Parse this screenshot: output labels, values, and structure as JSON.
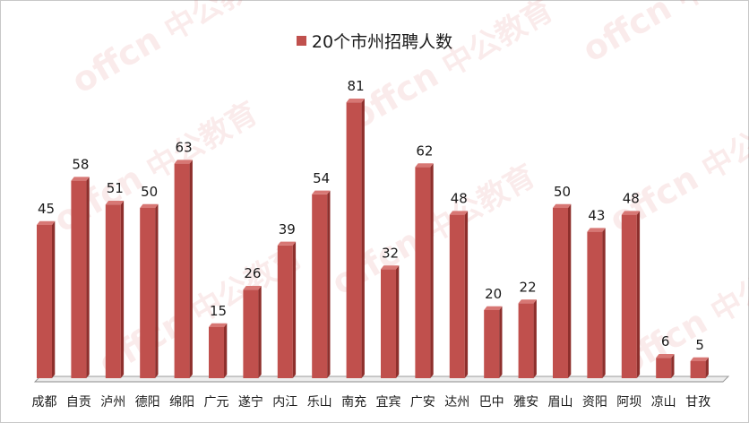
{
  "chart_data": {
    "type": "bar",
    "title": "",
    "xlabel": "",
    "ylabel": "",
    "legend": {
      "position": "top"
    },
    "grid": false,
    "ylim": [
      0,
      90
    ],
    "categories": [
      "成都",
      "自贡",
      "泸州",
      "德阳",
      "绵阳",
      "广元",
      "遂宁",
      "内江",
      "乐山",
      "南充",
      "宜宾",
      "广安",
      "达州",
      "巴中",
      "雅安",
      "眉山",
      "资阳",
      "阿坝",
      "凉山",
      "甘孜"
    ],
    "series": [
      {
        "name": "20个市州招聘人数",
        "color": "#c0504d",
        "values": [
          45,
          58,
          51,
          50,
          63,
          15,
          26,
          39,
          54,
          81,
          32,
          62,
          48,
          20,
          22,
          50,
          43,
          48,
          6,
          5
        ]
      }
    ]
  },
  "watermark": {
    "brand_latin": "offcn",
    "brand_cn": "中公教育"
  }
}
